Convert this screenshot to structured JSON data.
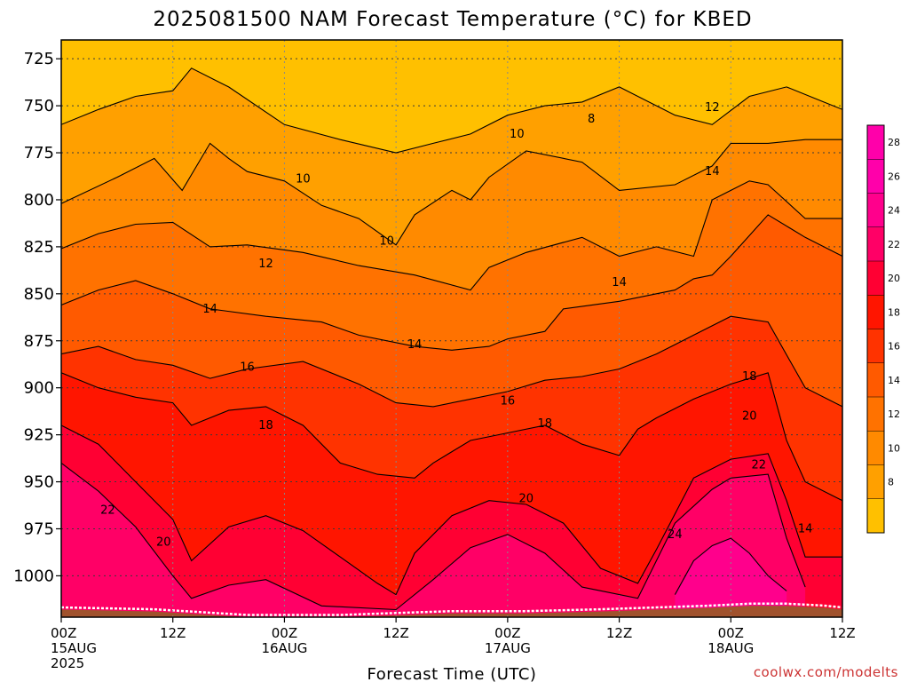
{
  "chart_data": {
    "type": "heatmap",
    "title": "2025081500 NAM Forecast Temperature (°C) for KBED",
    "xlabel": "Forecast Time (UTC)",
    "ylabel": "",
    "credit": "coolwx.com/modelts",
    "y_axis": {
      "ticks": [
        725,
        750,
        775,
        800,
        825,
        850,
        875,
        900,
        925,
        950,
        975,
        1000
      ],
      "range": [
        715,
        1022
      ],
      "inverted": true
    },
    "x_axis": {
      "ticks": [
        {
          "h": 0,
          "label": "00Z",
          "date": "15AUG",
          "year": "2025"
        },
        {
          "h": 12,
          "label": "12Z"
        },
        {
          "h": 24,
          "label": "00Z",
          "date": "16AUG"
        },
        {
          "h": 36,
          "label": "12Z"
        },
        {
          "h": 48,
          "label": "00Z",
          "date": "17AUG"
        },
        {
          "h": 60,
          "label": "12Z"
        },
        {
          "h": 72,
          "label": "00Z",
          "date": "18AUG"
        },
        {
          "h": 84,
          "label": "12Z"
        }
      ],
      "range_hours": [
        0,
        84
      ]
    },
    "colorbar": {
      "labels": [
        28,
        26,
        24,
        22,
        20,
        18,
        16,
        14,
        12,
        10,
        8
      ],
      "bands": [
        {
          "from": 30,
          "to": 28,
          "color": "#ff00aa"
        },
        {
          "from": 28,
          "to": 26,
          "color": "#ff00aa"
        },
        {
          "from": 26,
          "to": 24,
          "color": "#ff008c"
        },
        {
          "from": 24,
          "to": 22,
          "color": "#ff0066"
        },
        {
          "from": 22,
          "to": 20,
          "color": "#ff0033"
        },
        {
          "from": 20,
          "to": 18,
          "color": "#ff1500"
        },
        {
          "from": 18,
          "to": 16,
          "color": "#ff3300"
        },
        {
          "from": 16,
          "to": 14,
          "color": "#ff5a00"
        },
        {
          "from": 14,
          "to": 12,
          "color": "#ff7200"
        },
        {
          "from": 12,
          "to": 10,
          "color": "#ff8a00"
        },
        {
          "from": 10,
          "to": 8,
          "color": "#ffa000"
        },
        {
          "from": 8,
          "to": 6,
          "color": "#ffc000"
        }
      ]
    },
    "contour_levels": [
      8,
      10,
      12,
      14,
      16,
      18,
      20,
      22,
      24
    ],
    "contour_colors": {
      "8": "#ffc000",
      "10": "#ffa000",
      "12": "#ff8a00",
      "14": "#ff7200",
      "16": "#ff5a00",
      "18": "#ff3300",
      "20": "#ff1500",
      "22": "#ff0033",
      "24": "#ff0066",
      "26": "#ff008c"
    },
    "ground_color": "#a0522d",
    "isotherms": [
      {
        "temp": 10,
        "pts": [
          [
            0,
            802
          ],
          [
            6,
            788
          ],
          [
            10,
            778
          ],
          [
            13,
            795
          ],
          [
            16,
            770
          ],
          [
            18,
            778
          ],
          [
            20,
            785
          ],
          [
            24,
            790
          ],
          [
            28,
            803
          ],
          [
            32,
            810
          ],
          [
            36,
            824
          ],
          [
            38,
            808
          ],
          [
            42,
            795
          ],
          [
            44,
            800
          ],
          [
            46,
            788
          ],
          [
            50,
            774
          ],
          [
            56,
            780
          ],
          [
            60,
            795
          ],
          [
            66,
            792
          ],
          [
            70,
            782
          ],
          [
            72,
            770
          ],
          [
            76,
            770
          ],
          [
            80,
            768
          ],
          [
            84,
            768
          ]
        ]
      },
      {
        "temp": 12,
        "pts": [
          [
            0,
            826
          ],
          [
            4,
            818
          ],
          [
            8,
            813
          ],
          [
            12,
            812
          ],
          [
            16,
            825
          ],
          [
            20,
            824
          ],
          [
            26,
            828
          ],
          [
            32,
            835
          ],
          [
            38,
            840
          ],
          [
            44,
            848
          ],
          [
            46,
            836
          ],
          [
            50,
            828
          ],
          [
            56,
            820
          ],
          [
            60,
            830
          ],
          [
            64,
            825
          ],
          [
            68,
            830
          ],
          [
            70,
            800
          ],
          [
            72,
            795
          ],
          [
            74,
            790
          ],
          [
            76,
            792
          ],
          [
            80,
            810
          ],
          [
            84,
            810
          ]
        ]
      },
      {
        "temp": 14,
        "pts": [
          [
            0,
            856
          ],
          [
            4,
            848
          ],
          [
            8,
            843
          ],
          [
            12,
            850
          ],
          [
            16,
            858
          ],
          [
            22,
            862
          ],
          [
            28,
            865
          ],
          [
            32,
            872
          ],
          [
            38,
            878
          ],
          [
            42,
            880
          ],
          [
            46,
            878
          ],
          [
            48,
            874
          ],
          [
            52,
            870
          ],
          [
            54,
            858
          ],
          [
            60,
            854
          ],
          [
            66,
            848
          ],
          [
            68,
            842
          ],
          [
            70,
            840
          ],
          [
            72,
            830
          ],
          [
            76,
            808
          ],
          [
            80,
            820
          ],
          [
            84,
            830
          ]
        ]
      },
      {
        "temp": 16,
        "pts": [
          [
            0,
            882
          ],
          [
            4,
            878
          ],
          [
            8,
            885
          ],
          [
            12,
            888
          ],
          [
            16,
            895
          ],
          [
            20,
            890
          ],
          [
            26,
            886
          ],
          [
            32,
            898
          ],
          [
            36,
            908
          ],
          [
            40,
            910
          ],
          [
            44,
            906
          ],
          [
            48,
            902
          ],
          [
            52,
            896
          ],
          [
            56,
            894
          ],
          [
            60,
            890
          ],
          [
            64,
            882
          ],
          [
            68,
            872
          ],
          [
            72,
            862
          ],
          [
            76,
            865
          ],
          [
            80,
            900
          ],
          [
            84,
            910
          ]
        ]
      },
      {
        "temp": 18,
        "pts": [
          [
            0,
            892
          ],
          [
            4,
            900
          ],
          [
            8,
            905
          ],
          [
            12,
            908
          ],
          [
            14,
            920
          ],
          [
            18,
            912
          ],
          [
            22,
            910
          ],
          [
            26,
            920
          ],
          [
            30,
            940
          ],
          [
            34,
            946
          ],
          [
            38,
            948
          ],
          [
            40,
            940
          ],
          [
            44,
            928
          ],
          [
            48,
            924
          ],
          [
            52,
            920
          ],
          [
            56,
            930
          ],
          [
            60,
            936
          ],
          [
            62,
            922
          ],
          [
            64,
            916
          ],
          [
            68,
            906
          ],
          [
            72,
            898
          ],
          [
            76,
            892
          ],
          [
            78,
            928
          ],
          [
            80,
            950
          ],
          [
            84,
            960
          ]
        ]
      },
      {
        "temp": 20,
        "pts": [
          [
            0,
            920
          ],
          [
            4,
            930
          ],
          [
            8,
            950
          ],
          [
            12,
            970
          ],
          [
            14,
            992
          ],
          [
            18,
            974
          ],
          [
            22,
            968
          ],
          [
            26,
            976
          ],
          [
            30,
            990
          ],
          [
            34,
            1004
          ],
          [
            36,
            1010
          ],
          [
            38,
            988
          ],
          [
            42,
            968
          ],
          [
            46,
            960
          ],
          [
            50,
            962
          ],
          [
            54,
            972
          ],
          [
            58,
            996
          ],
          [
            62,
            1004
          ],
          [
            64,
            986
          ],
          [
            68,
            948
          ],
          [
            72,
            938
          ],
          [
            76,
            935
          ],
          [
            78,
            960
          ],
          [
            80,
            990
          ],
          [
            84,
            990
          ]
        ]
      },
      {
        "temp": 22,
        "pts": [
          [
            0,
            940
          ],
          [
            4,
            955
          ],
          [
            8,
            974
          ],
          [
            12,
            1000
          ],
          [
            14,
            1012
          ],
          [
            18,
            1005
          ],
          [
            22,
            1002
          ],
          [
            28,
            1016
          ],
          [
            36,
            1018
          ],
          [
            40,
            1002
          ],
          [
            44,
            985
          ],
          [
            48,
            978
          ],
          [
            52,
            988
          ],
          [
            56,
            1006
          ],
          [
            62,
            1012
          ],
          [
            66,
            972
          ],
          [
            70,
            954
          ],
          [
            72,
            948
          ],
          [
            76,
            946
          ],
          [
            78,
            980
          ],
          [
            80,
            1006
          ]
        ]
      },
      {
        "temp": 24,
        "pts": [
          [
            66,
            1010
          ],
          [
            68,
            992
          ],
          [
            70,
            984
          ],
          [
            72,
            980
          ],
          [
            74,
            988
          ],
          [
            76,
            1000
          ],
          [
            78,
            1008
          ]
        ]
      }
    ],
    "contour_labels": [
      {
        "text": "8",
        "h": 57,
        "p": 757
      },
      {
        "text": "10",
        "h": 26,
        "p": 789
      },
      {
        "text": "10",
        "h": 35,
        "p": 822
      },
      {
        "text": "10",
        "h": 49,
        "p": 765
      },
      {
        "text": "12",
        "h": 22,
        "p": 834
      },
      {
        "text": "12",
        "h": 70,
        "p": 751
      },
      {
        "text": "14",
        "h": 16,
        "p": 858
      },
      {
        "text": "14",
        "h": 38,
        "p": 877
      },
      {
        "text": "14",
        "h": 60,
        "p": 844
      },
      {
        "text": "14",
        "h": 70,
        "p": 785
      },
      {
        "text": "14",
        "h": 80,
        "p": 975
      },
      {
        "text": "16",
        "h": 20,
        "p": 889
      },
      {
        "text": "16",
        "h": 48,
        "p": 907
      },
      {
        "text": "18",
        "h": 22,
        "p": 920
      },
      {
        "text": "18",
        "h": 52,
        "p": 919
      },
      {
        "text": "18",
        "h": 74,
        "p": 894
      },
      {
        "text": "20",
        "h": 11,
        "p": 982
      },
      {
        "text": "20",
        "h": 50,
        "p": 959
      },
      {
        "text": "20",
        "h": 74,
        "p": 915
      },
      {
        "text": "22",
        "h": 5,
        "p": 965
      },
      {
        "text": "22",
        "h": 75,
        "p": 941
      },
      {
        "text": "24",
        "h": 66,
        "p": 978
      }
    ],
    "surface": [
      [
        0,
        1018
      ],
      [
        10,
        1019
      ],
      [
        20,
        1022
      ],
      [
        30,
        1022
      ],
      [
        36,
        1021
      ],
      [
        42,
        1020
      ],
      [
        50,
        1020
      ],
      [
        58,
        1019
      ],
      [
        64,
        1018
      ],
      [
        70,
        1017
      ],
      [
        74,
        1016
      ],
      [
        78,
        1016
      ],
      [
        82,
        1017
      ],
      [
        84,
        1018
      ]
    ],
    "grid": "dotted",
    "legend": "colorbar right"
  }
}
